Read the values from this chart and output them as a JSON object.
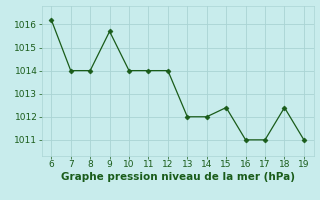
{
  "x": [
    6,
    7,
    8,
    9,
    10,
    11,
    12,
    13,
    14,
    15,
    16,
    17,
    18,
    19
  ],
  "y": [
    1016.2,
    1014.0,
    1014.0,
    1015.7,
    1014.0,
    1014.0,
    1014.0,
    1012.0,
    1012.0,
    1012.4,
    1011.0,
    1011.0,
    1012.4,
    1011.0
  ],
  "line_color": "#1a5c1a",
  "marker": "D",
  "marker_size": 2.5,
  "bg_color": "#c8ecec",
  "grid_color": "#aad4d4",
  "xlabel": "Graphe pression niveau de la mer (hPa)",
  "xlabel_color": "#1a5c1a",
  "xlabel_fontsize": 7.5,
  "ylim": [
    1010.3,
    1016.8
  ],
  "xlim": [
    5.5,
    19.5
  ],
  "yticks": [
    1011,
    1012,
    1013,
    1014,
    1015,
    1016
  ],
  "xticks": [
    6,
    7,
    8,
    9,
    10,
    11,
    12,
    13,
    14,
    15,
    16,
    17,
    18,
    19
  ],
  "tick_fontsize": 6.5,
  "tick_color": "#1a5c1a"
}
